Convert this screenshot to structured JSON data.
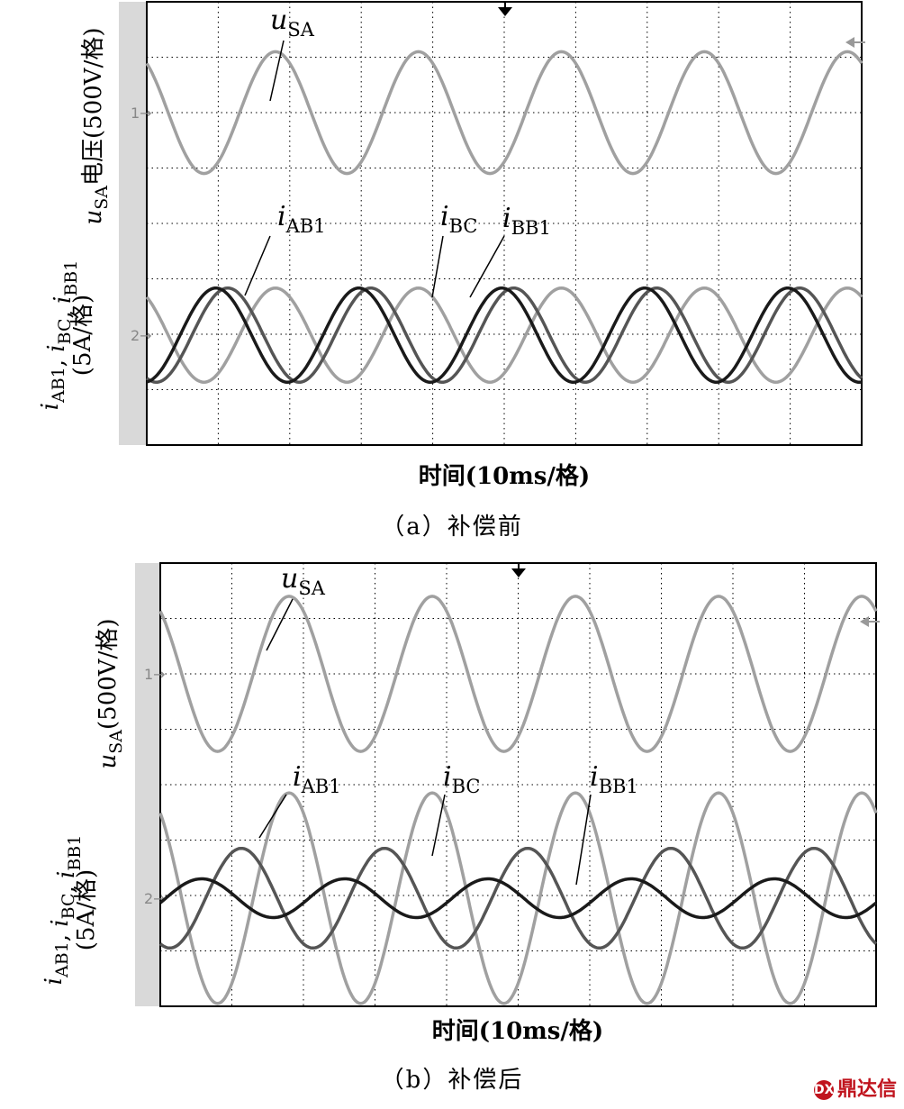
{
  "chart_data": [
    {
      "id": "panel_a",
      "type": "line",
      "caption": "（a）补偿前",
      "xlabel": "时间(10ms/格)",
      "ylabel_upper": "u_SA电压(500V/格)",
      "ylabel_lower": "i_AB1, i_BC, i_BB1 (5A/格)",
      "x_divisions": 10,
      "y_divisions": 8,
      "channel_markers": [
        "1",
        "2"
      ],
      "series": [
        {
          "name": "u_SA",
          "label_base": "u",
          "label_sub": "SA",
          "color": "#a0a0a0",
          "amplitude_div": 1.1,
          "period_ms": 20,
          "phase_deg": 0,
          "offset_div": 0,
          "channel": 1
        },
        {
          "name": "i_AB1",
          "label_base": "i",
          "label_sub": "AB1",
          "color": "#a0a0a0",
          "amplitude_div": 0.85,
          "period_ms": 20,
          "phase_deg": 0,
          "offset_div": 0,
          "channel": 2
        },
        {
          "name": "i_BC",
          "label_base": "i",
          "label_sub": "BC",
          "color": "#555555",
          "amplitude_div": 0.85,
          "period_ms": 20,
          "phase_deg": 120,
          "offset_div": 0,
          "channel": 2
        },
        {
          "name": "i_BB1",
          "label_base": "i",
          "label_sub": "BB1",
          "color": "#1a1a1a",
          "amplitude_div": 0.85,
          "period_ms": 20,
          "phase_deg": 150,
          "offset_div": 0,
          "channel": 2
        }
      ]
    },
    {
      "id": "panel_b",
      "type": "line",
      "caption": "（b）补偿后",
      "xlabel": "时间(10ms/格)",
      "ylabel_upper": "u_SA(500V/格)",
      "ylabel_lower": "i_AB1, i_BC, i_BB1 (5A/格)",
      "x_divisions": 10,
      "y_divisions": 8,
      "channel_markers": [
        "1",
        "2"
      ],
      "series": [
        {
          "name": "u_SA",
          "label_base": "u",
          "label_sub": "SA",
          "color": "#a0a0a0",
          "amplitude_div": 1.4,
          "period_ms": 20,
          "phase_deg": 0,
          "offset_div": 0,
          "channel": 1
        },
        {
          "name": "i_AB1",
          "label_base": "i",
          "label_sub": "AB1",
          "color": "#a0a0a0",
          "amplitude_div": 1.9,
          "period_ms": 20,
          "phase_deg": 0,
          "offset_div": 0,
          "channel": 2
        },
        {
          "name": "i_BC",
          "label_base": "i",
          "label_sub": "BC",
          "color": "#555555",
          "amplitude_div": 0.9,
          "period_ms": 20,
          "phase_deg": 120,
          "offset_div": 0,
          "channel": 2
        },
        {
          "name": "i_BB1",
          "label_base": "i",
          "label_sub": "BB1",
          "color": "#1a1a1a",
          "amplitude_div": 0.35,
          "period_ms": 20,
          "phase_deg": 220,
          "offset_div": 0,
          "channel": 2
        }
      ]
    }
  ],
  "watermark": "鼎达信",
  "watermark_logo": "DX"
}
